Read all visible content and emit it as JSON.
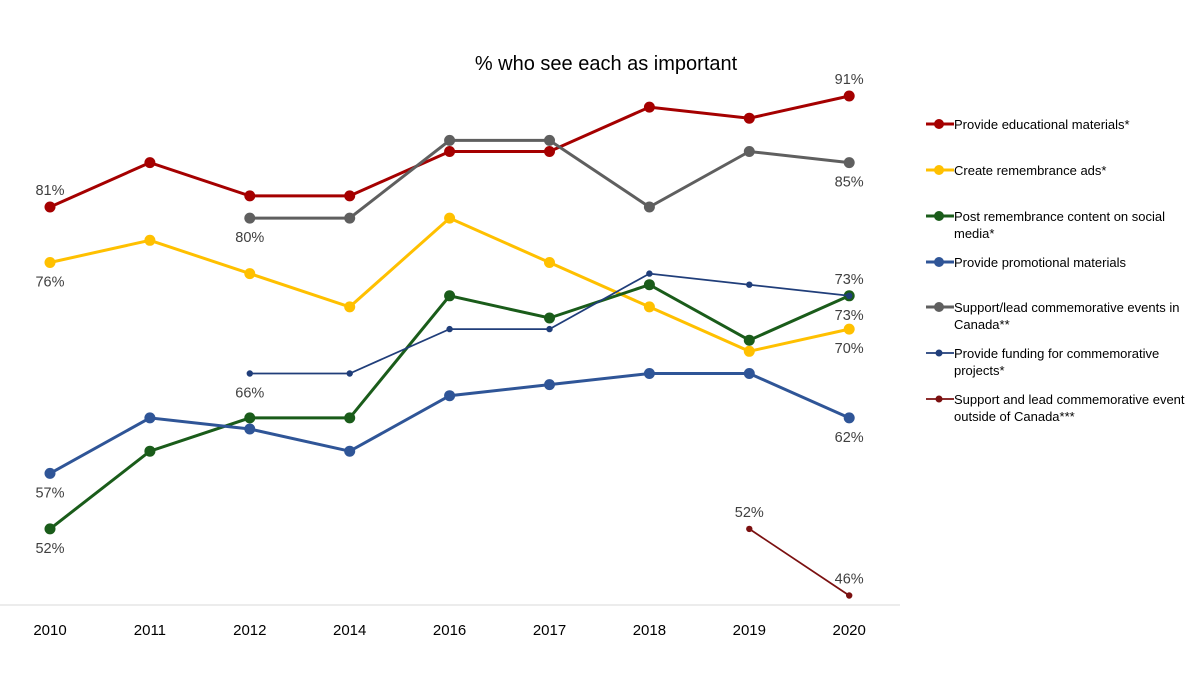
{
  "chart_data": {
    "type": "line",
    "title": "% who see each as important",
    "categories": [
      "2010",
      "2011",
      "2012",
      "2014",
      "2016",
      "2017",
      "2018",
      "2019",
      "2020"
    ],
    "ylim": [
      44,
      95
    ],
    "grid": false,
    "legend_position": "right",
    "series": [
      {
        "name": "Provide educational materials*",
        "color": "#A50000",
        "thick": true,
        "values": [
          81,
          85,
          82,
          82,
          86,
          86,
          90,
          89,
          91
        ]
      },
      {
        "name": "Create remembrance ads*",
        "color": "#FFC000",
        "thick": true,
        "values": [
          76,
          78,
          75,
          72,
          80,
          76,
          72,
          68,
          70
        ]
      },
      {
        "name": "Post remembrance content on social media*",
        "color": "#1A5C1A",
        "thick": true,
        "values": [
          52,
          59,
          62,
          62,
          73,
          71,
          74,
          69,
          73
        ]
      },
      {
        "name": "Provide promotional materials",
        "color": "#2F5597",
        "thick": true,
        "values": [
          57,
          62,
          61,
          59,
          64,
          65,
          66,
          66,
          62
        ]
      },
      {
        "name": "Support/lead commemorative events in Canada**",
        "color": "#5F5F5F",
        "thick": true,
        "values": [
          null,
          null,
          80,
          80,
          87,
          87,
          81,
          86,
          85
        ]
      },
      {
        "name": "Provide funding for commemorative projects*",
        "color": "#203E7A",
        "thick": false,
        "values": [
          null,
          null,
          66,
          66,
          70,
          70,
          75,
          74,
          73
        ]
      },
      {
        "name": "Support and lead commemorative event outside of Canada***",
        "color": "#7B1010",
        "thick": false,
        "values": [
          null,
          null,
          null,
          null,
          null,
          null,
          null,
          52,
          46
        ]
      }
    ],
    "data_labels": [
      {
        "series": 0,
        "category": "2010",
        "text": "81%",
        "position": "above"
      },
      {
        "series": 1,
        "category": "2010",
        "text": "76%",
        "position": "below"
      },
      {
        "series": 3,
        "category": "2010",
        "text": "57%",
        "position": "below"
      },
      {
        "series": 2,
        "category": "2010",
        "text": "52%",
        "position": "below"
      },
      {
        "series": 4,
        "category": "2012",
        "text": "80%",
        "position": "below"
      },
      {
        "series": 5,
        "category": "2012",
        "text": "66%",
        "position": "below"
      },
      {
        "series": 0,
        "category": "2020",
        "text": "91%",
        "position": "above"
      },
      {
        "series": 4,
        "category": "2020",
        "text": "85%",
        "position": "below"
      },
      {
        "series": 5,
        "category": "2020",
        "text": "73%",
        "position": "above"
      },
      {
        "series": 2,
        "category": "2020",
        "text": "73%",
        "position": "below"
      },
      {
        "series": 1,
        "category": "2020",
        "text": "70%",
        "position": "below"
      },
      {
        "series": 3,
        "category": "2020",
        "text": "62%",
        "position": "below"
      },
      {
        "series": 6,
        "category": "2019",
        "text": "52%",
        "position": "above"
      },
      {
        "series": 6,
        "category": "2020",
        "text": "46%",
        "position": "above"
      }
    ]
  }
}
